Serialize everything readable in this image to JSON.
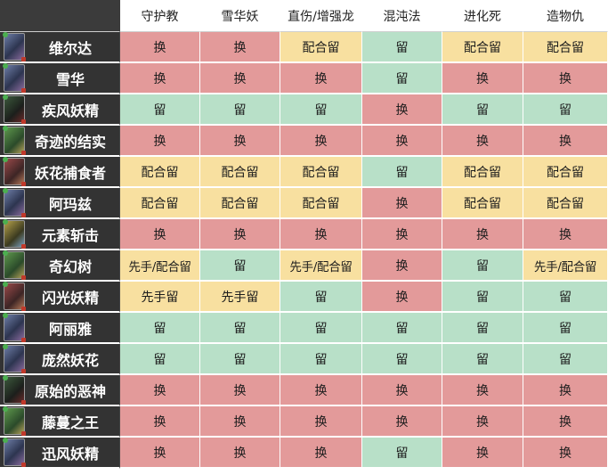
{
  "columns": [
    "守护教",
    "雪华妖",
    "直伤/增强龙",
    "混沌法",
    "进化死",
    "造物仇"
  ],
  "legend": {
    "swap": {
      "text": "换",
      "color": "#e39a9a"
    },
    "keep": {
      "text": "留",
      "color": "#b8e0c8"
    },
    "combo": {
      "text": "配合留",
      "color": "#f8e0a0"
    },
    "first": {
      "text": "先手留",
      "color": "#f8e0a0"
    },
    "firstcombo": {
      "text": "先手/配合留",
      "color": "#f8e0a0"
    }
  },
  "rows": [
    {
      "card": "维尔达",
      "thumb": "card-art-icon",
      "cells": [
        "换",
        "换",
        "配合留",
        "留",
        "配合留",
        "配合留"
      ]
    },
    {
      "card": "雪华",
      "thumb": "card-art-icon",
      "cells": [
        "换",
        "换",
        "换",
        "留",
        "换",
        "换"
      ]
    },
    {
      "card": "疾风妖精",
      "thumb": "card-art-icon",
      "cells": [
        "留",
        "留",
        "留",
        "换",
        "留",
        "留"
      ]
    },
    {
      "card": "奇迹的结实",
      "thumb": "card-art-icon",
      "cells": [
        "换",
        "换",
        "换",
        "换",
        "换",
        "换"
      ]
    },
    {
      "card": "妖花捕食者",
      "thumb": "card-art-icon",
      "cells": [
        "配合留",
        "配合留",
        "配合留",
        "留",
        "配合留",
        "配合留"
      ]
    },
    {
      "card": "阿玛兹",
      "thumb": "card-art-icon",
      "cells": [
        "配合留",
        "配合留",
        "配合留",
        "换",
        "配合留",
        "配合留"
      ]
    },
    {
      "card": "元素斩击",
      "thumb": "card-art-icon",
      "cells": [
        "换",
        "换",
        "换",
        "换",
        "换",
        "换"
      ]
    },
    {
      "card": "奇幻树",
      "thumb": "card-art-icon",
      "cells": [
        "先手/配合留",
        "留",
        "先手/配合留",
        "换",
        "留",
        "先手/配合留"
      ]
    },
    {
      "card": "闪光妖精",
      "thumb": "card-art-icon",
      "cells": [
        "先手留",
        "先手留",
        "留",
        "换",
        "留",
        "留"
      ]
    },
    {
      "card": "阿丽雅",
      "thumb": "card-art-icon",
      "cells": [
        "留",
        "留",
        "留",
        "留",
        "留",
        "留"
      ]
    },
    {
      "card": "庞然妖花",
      "thumb": "card-art-icon",
      "cells": [
        "留",
        "留",
        "留",
        "留",
        "留",
        "留"
      ]
    },
    {
      "card": "原始的恶神",
      "thumb": "card-art-icon",
      "cells": [
        "换",
        "换",
        "换",
        "换",
        "换",
        "换"
      ]
    },
    {
      "card": "藤蔓之王",
      "thumb": "card-art-icon",
      "cells": [
        "换",
        "换",
        "换",
        "换",
        "换",
        "换"
      ]
    },
    {
      "card": "迅风妖精",
      "thumb": "card-art-icon",
      "cells": [
        "换",
        "换",
        "换",
        "留",
        "换",
        "换"
      ]
    }
  ]
}
